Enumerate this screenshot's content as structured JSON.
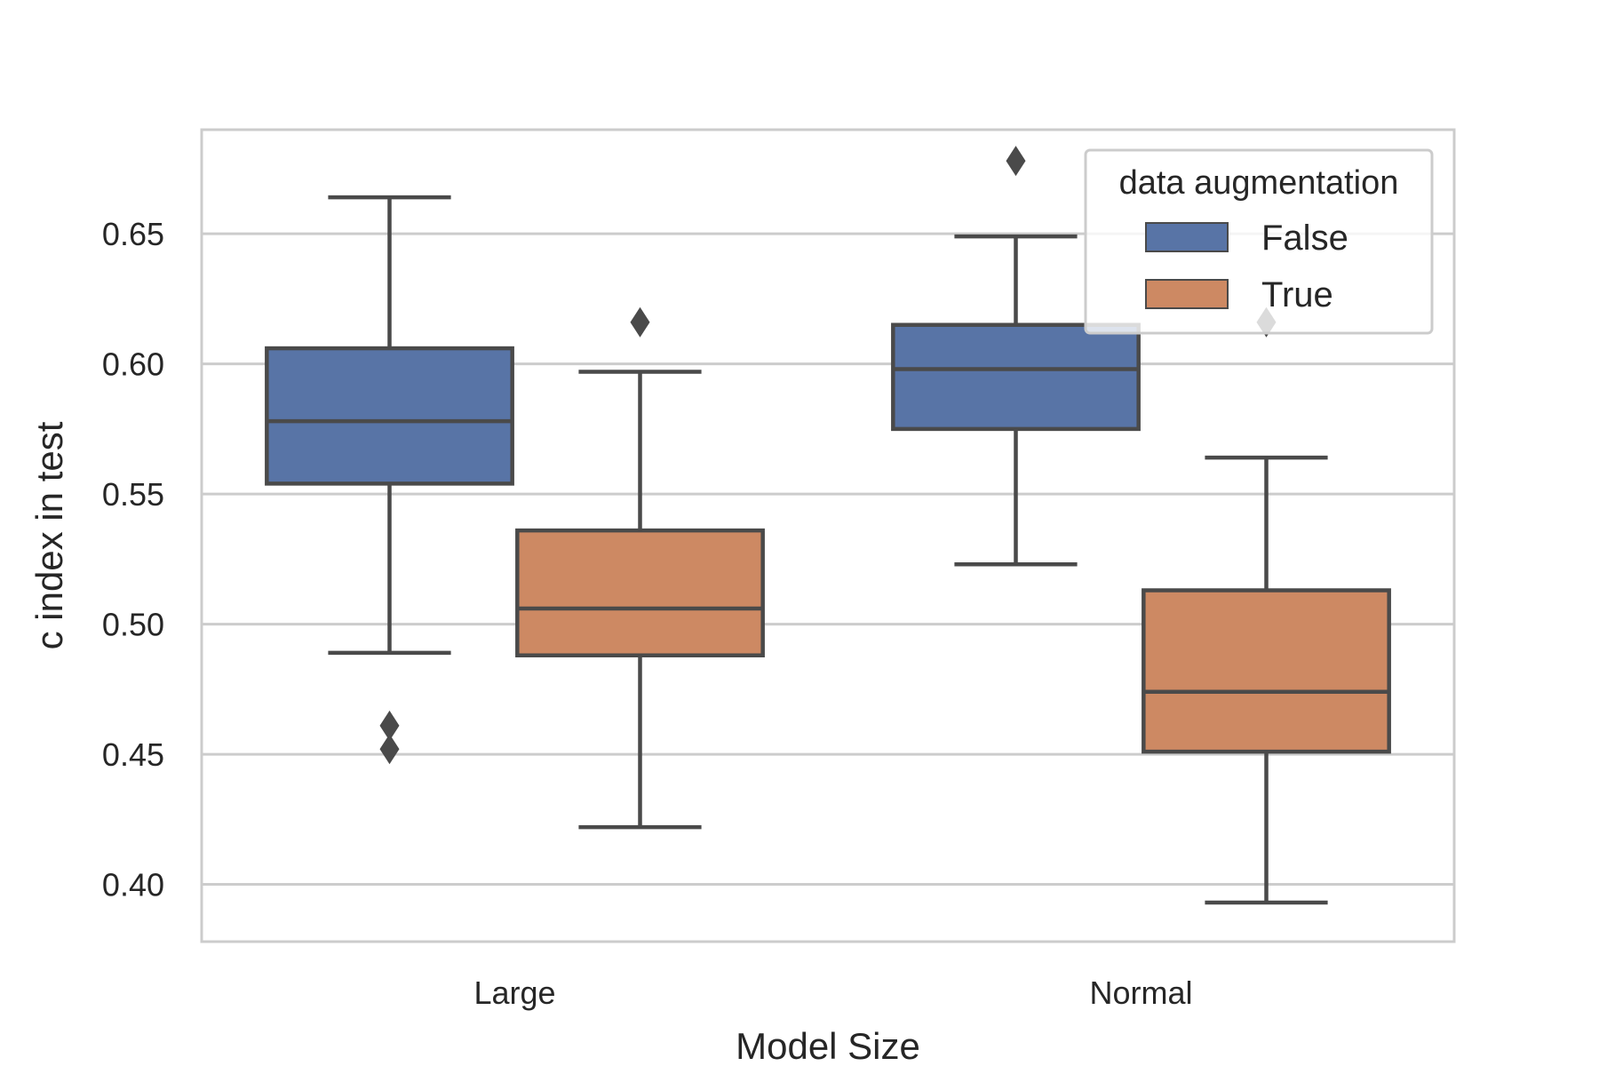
{
  "chart_data": {
    "type": "box",
    "title": "",
    "xlabel": "Model Size",
    "ylabel": "c index in test",
    "categories": [
      "Large",
      "Normal"
    ],
    "ylim": [
      0.378,
      0.69
    ],
    "yticks": [
      0.4,
      0.45,
      0.5,
      0.55,
      0.6,
      0.65
    ],
    "ytick_labels": [
      "0.40",
      "0.45",
      "0.50",
      "0.55",
      "0.60",
      "0.65"
    ],
    "grid": "horizontal",
    "legend": {
      "title": "data augmentation",
      "position": "upper-right"
    },
    "series": [
      {
        "name": "False",
        "color": "#5874a6",
        "boxes": [
          {
            "category": "Large",
            "whisker_low": 0.489,
            "q1": 0.554,
            "median": 0.578,
            "q3": 0.606,
            "whisker_high": 0.664,
            "outliers": [
              0.452,
              0.461
            ]
          },
          {
            "category": "Normal",
            "whisker_low": 0.523,
            "q1": 0.575,
            "median": 0.598,
            "q3": 0.615,
            "whisker_high": 0.649,
            "outliers": [
              0.678
            ]
          }
        ]
      },
      {
        "name": "True",
        "color": "#cd8963",
        "boxes": [
          {
            "category": "Large",
            "whisker_low": 0.422,
            "q1": 0.488,
            "median": 0.506,
            "q3": 0.536,
            "whisker_high": 0.597,
            "outliers": [
              0.616
            ]
          },
          {
            "category": "Normal",
            "whisker_low": 0.393,
            "q1": 0.451,
            "median": 0.474,
            "q3": 0.513,
            "whisker_high": 0.564,
            "outliers": [
              0.616
            ]
          }
        ]
      }
    ]
  }
}
